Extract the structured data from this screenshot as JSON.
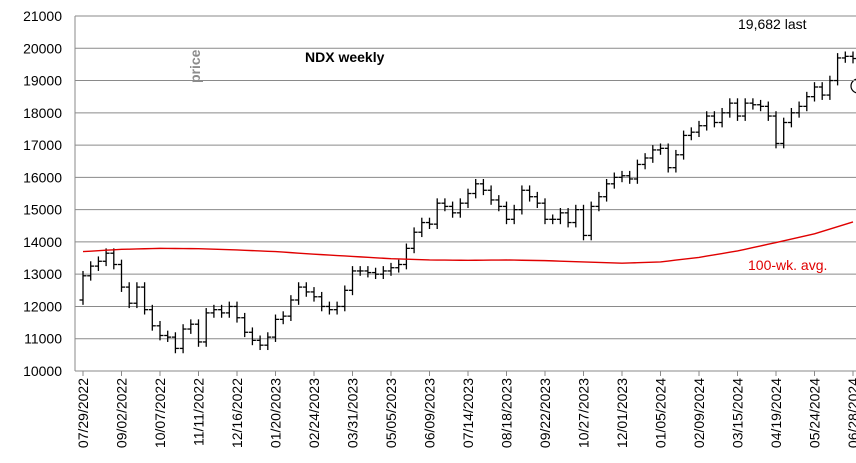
{
  "chart_data": {
    "type": "ohlc",
    "title": "NDX weekly",
    "ylabel": "price",
    "annotations": [
      "19,682 last"
    ],
    "categories": [
      "07/29/2022",
      null,
      null,
      null,
      null,
      "09/02/2022",
      null,
      null,
      null,
      null,
      "10/07/2022",
      null,
      null,
      null,
      null,
      "11/11/2022",
      null,
      null,
      null,
      null,
      "12/16/2022",
      null,
      null,
      null,
      null,
      "01/20/2023",
      null,
      null,
      null,
      null,
      "02/24/2023",
      null,
      null,
      null,
      null,
      "03/31/2023",
      null,
      null,
      null,
      null,
      "05/05/2023",
      null,
      null,
      null,
      null,
      "06/09/2023",
      null,
      null,
      null,
      null,
      "07/14/2023",
      null,
      null,
      null,
      null,
      "08/18/2023",
      null,
      null,
      null,
      null,
      "09/22/2023",
      null,
      null,
      null,
      null,
      "10/27/2023",
      null,
      null,
      null,
      null,
      "12/01/2023",
      null,
      null,
      null,
      null,
      "01/05/2024",
      null,
      null,
      null,
      null,
      "02/09/2024",
      null,
      null,
      null,
      null,
      "03/15/2024",
      null,
      null,
      null,
      null,
      "04/19/2024",
      null,
      null,
      null,
      null,
      "05/24/2024",
      null,
      null,
      null,
      null,
      "06/28/2024"
    ],
    "color": "#000000",
    "open": [
      12200,
      12950,
      13250,
      13400,
      13650,
      13300,
      12600,
      12100,
      12600,
      11900,
      11400,
      11100,
      11050,
      10700,
      11300,
      11450,
      10900,
      11800,
      11900,
      11800,
      12000,
      11650,
      11200,
      10950,
      10800,
      11050,
      11600,
      11700,
      12200,
      12600,
      12450,
      12300,
      12000,
      11900,
      12000,
      12500,
      13100,
      13100,
      13050,
      13000,
      13100,
      13200,
      13300,
      13800,
      14300,
      14600,
      14550,
      15200,
      15100,
      14900,
      15200,
      15500,
      15800,
      15600,
      15300,
      15100,
      14700,
      15000,
      15600,
      15400,
      15200,
      14700,
      14700,
      14900,
      14600,
      15000,
      14200,
      15100,
      15400,
      15800,
      16000,
      16050,
      15950,
      16400,
      16600,
      16850,
      16900,
      16300,
      16700,
      17300,
      17400,
      17600,
      17900,
      17700,
      18000,
      18300,
      17900,
      18300,
      18250,
      18200,
      17900,
      17050,
      17700,
      18000,
      18200,
      18500,
      18800,
      18550,
      19000,
      19700,
      19750
    ],
    "high": [
      13100,
      13400,
      13550,
      13800,
      13800,
      13450,
      12750,
      12750,
      12750,
      12050,
      11550,
      11250,
      11200,
      11450,
      11600,
      11600,
      11950,
      12050,
      12050,
      12150,
      12150,
      11800,
      11350,
      11100,
      11200,
      11750,
      11850,
      12350,
      12750,
      12750,
      12600,
      12450,
      12150,
      12150,
      12650,
      13250,
      13250,
      13250,
      13200,
      13250,
      13350,
      13450,
      13950,
      14450,
      14750,
      14750,
      15350,
      15350,
      15250,
      15350,
      15650,
      15950,
      15950,
      15750,
      15450,
      15250,
      15150,
      15750,
      15750,
      15550,
      15350,
      14850,
      15050,
      15050,
      15150,
      15150,
      15250,
      15550,
      15950,
      16150,
      16200,
      16200,
      16550,
      16750,
      17000,
      17050,
      17050,
      16850,
      17450,
      17550,
      17750,
      18050,
      18050,
      18150,
      18450,
      18450,
      18450,
      18450,
      18400,
      18350,
      18050,
      17850,
      18150,
      18350,
      18650,
      18950,
      18950,
      19150,
      19850,
      19900,
      19900
    ],
    "low": [
      12050,
      12800,
      13100,
      13250,
      13150,
      12450,
      11950,
      11950,
      11750,
      11250,
      10950,
      10900,
      10550,
      10550,
      11150,
      10750,
      10750,
      11650,
      11650,
      11650,
      11500,
      11050,
      10800,
      10650,
      10650,
      10900,
      11450,
      11550,
      12050,
      12300,
      12150,
      11850,
      11750,
      11750,
      11850,
      12350,
      12950,
      12900,
      12850,
      12850,
      12950,
      13050,
      13150,
      13650,
      14150,
      14400,
      14400,
      14950,
      14750,
      14750,
      15050,
      15350,
      15450,
      15150,
      14950,
      14550,
      14550,
      14850,
      15250,
      15050,
      14550,
      14550,
      14550,
      14450,
      14450,
      14050,
      14050,
      14950,
      15250,
      15650,
      15850,
      15800,
      15800,
      16250,
      16450,
      16700,
      16150,
      16150,
      16550,
      17150,
      17250,
      17450,
      17550,
      17550,
      17850,
      17750,
      17750,
      18100,
      18050,
      17750,
      16900,
      16900,
      17550,
      17850,
      18050,
      18350,
      18400,
      18400,
      18850,
      19550,
      19532
    ],
    "close": [
      12950,
      13250,
      13400,
      13650,
      13300,
      12600,
      12100,
      12600,
      11900,
      11400,
      11100,
      11050,
      10700,
      11300,
      11450,
      10900,
      11800,
      11900,
      11800,
      12000,
      11650,
      11200,
      10950,
      10800,
      11050,
      11600,
      11700,
      12200,
      12600,
      12450,
      12300,
      12000,
      11900,
      12000,
      12500,
      13100,
      13100,
      13050,
      13000,
      13100,
      13200,
      13300,
      13800,
      14300,
      14600,
      14550,
      15200,
      15100,
      14900,
      15200,
      15500,
      15800,
      15600,
      15300,
      15100,
      14700,
      15000,
      15600,
      15400,
      15200,
      14700,
      14700,
      14900,
      14600,
      15000,
      14200,
      15100,
      15400,
      15800,
      16000,
      16050,
      15950,
      16400,
      16600,
      16850,
      16900,
      16300,
      16700,
      17300,
      17400,
      17600,
      17900,
      17700,
      18000,
      18300,
      17900,
      18300,
      18250,
      18200,
      17900,
      17050,
      17700,
      18000,
      18200,
      18500,
      18800,
      18550,
      19000,
      19700,
      19750,
      19682
    ],
    "series": [
      {
        "name": "100-wk. avg.",
        "color": "#e00000",
        "values": [
          13700,
          13714,
          13728,
          13742,
          13756,
          13770,
          13776,
          13782,
          13788,
          13794,
          13800,
          13798,
          13796,
          13794,
          13792,
          13790,
          13782,
          13774,
          13766,
          13758,
          13750,
          13740,
          13730,
          13720,
          13710,
          13700,
          13684,
          13668,
          13652,
          13636,
          13620,
          13606,
          13592,
          13578,
          13564,
          13550,
          13536,
          13522,
          13508,
          13494,
          13480,
          13472,
          13464,
          13456,
          13448,
          13440,
          13438,
          13436,
          13434,
          13432,
          13430,
          13432,
          13434,
          13436,
          13438,
          13440,
          13436,
          13432,
          13428,
          13424,
          13420,
          13412,
          13404,
          13396,
          13388,
          13380,
          13372,
          13364,
          13356,
          13348,
          13340,
          13348,
          13356,
          13364,
          13372,
          13380,
          13408,
          13436,
          13464,
          13492,
          13520,
          13560,
          13600,
          13640,
          13680,
          13720,
          13772,
          13824,
          13876,
          13928,
          13980,
          14034,
          14088,
          14142,
          14196,
          14250,
          14324,
          14398,
          14472,
          14546,
          14620
        ]
      }
    ],
    "ylim": [
      10000,
      21000
    ],
    "yticks": [
      10000,
      11000,
      12000,
      13000,
      14000,
      15000,
      16000,
      17000,
      18000,
      19000,
      20000,
      21000
    ],
    "grid": true
  }
}
